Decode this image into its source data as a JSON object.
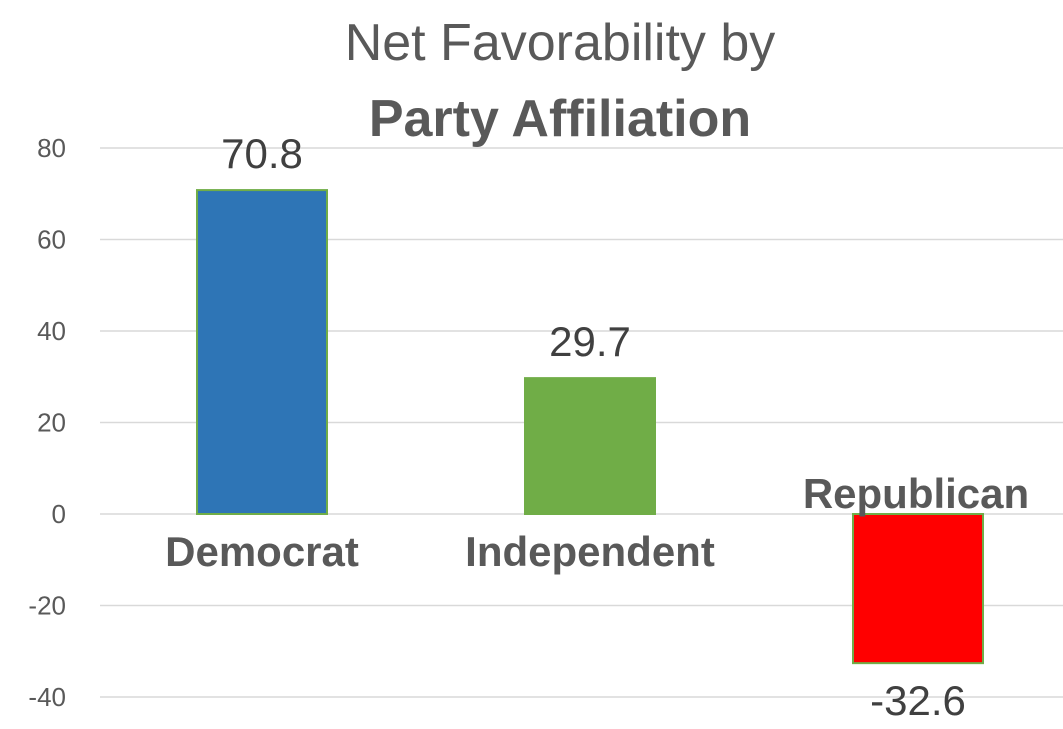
{
  "chart_data": {
    "type": "bar",
    "title_line1": "Net Favorability by",
    "title_line2": "Party Affiliation",
    "categories": [
      "Democrat",
      "Independent",
      "Republican"
    ],
    "values": [
      70.8,
      29.7,
      -32.6
    ],
    "value_labels": [
      "70.8",
      "29.7",
      "-32.6"
    ],
    "colors": [
      "#2E75B6",
      "#70AD47",
      "#FF0000"
    ],
    "bar_border_color": "#70AD47",
    "ylim": [
      -40,
      80
    ],
    "yticks": [
      80,
      60,
      40,
      20,
      0,
      -20,
      -40
    ],
    "ytick_labels": [
      "80",
      "60",
      "40",
      "20",
      "0",
      "-20",
      "-40"
    ],
    "grid": true,
    "legend": false,
    "xlabel": "",
    "ylabel": ""
  }
}
